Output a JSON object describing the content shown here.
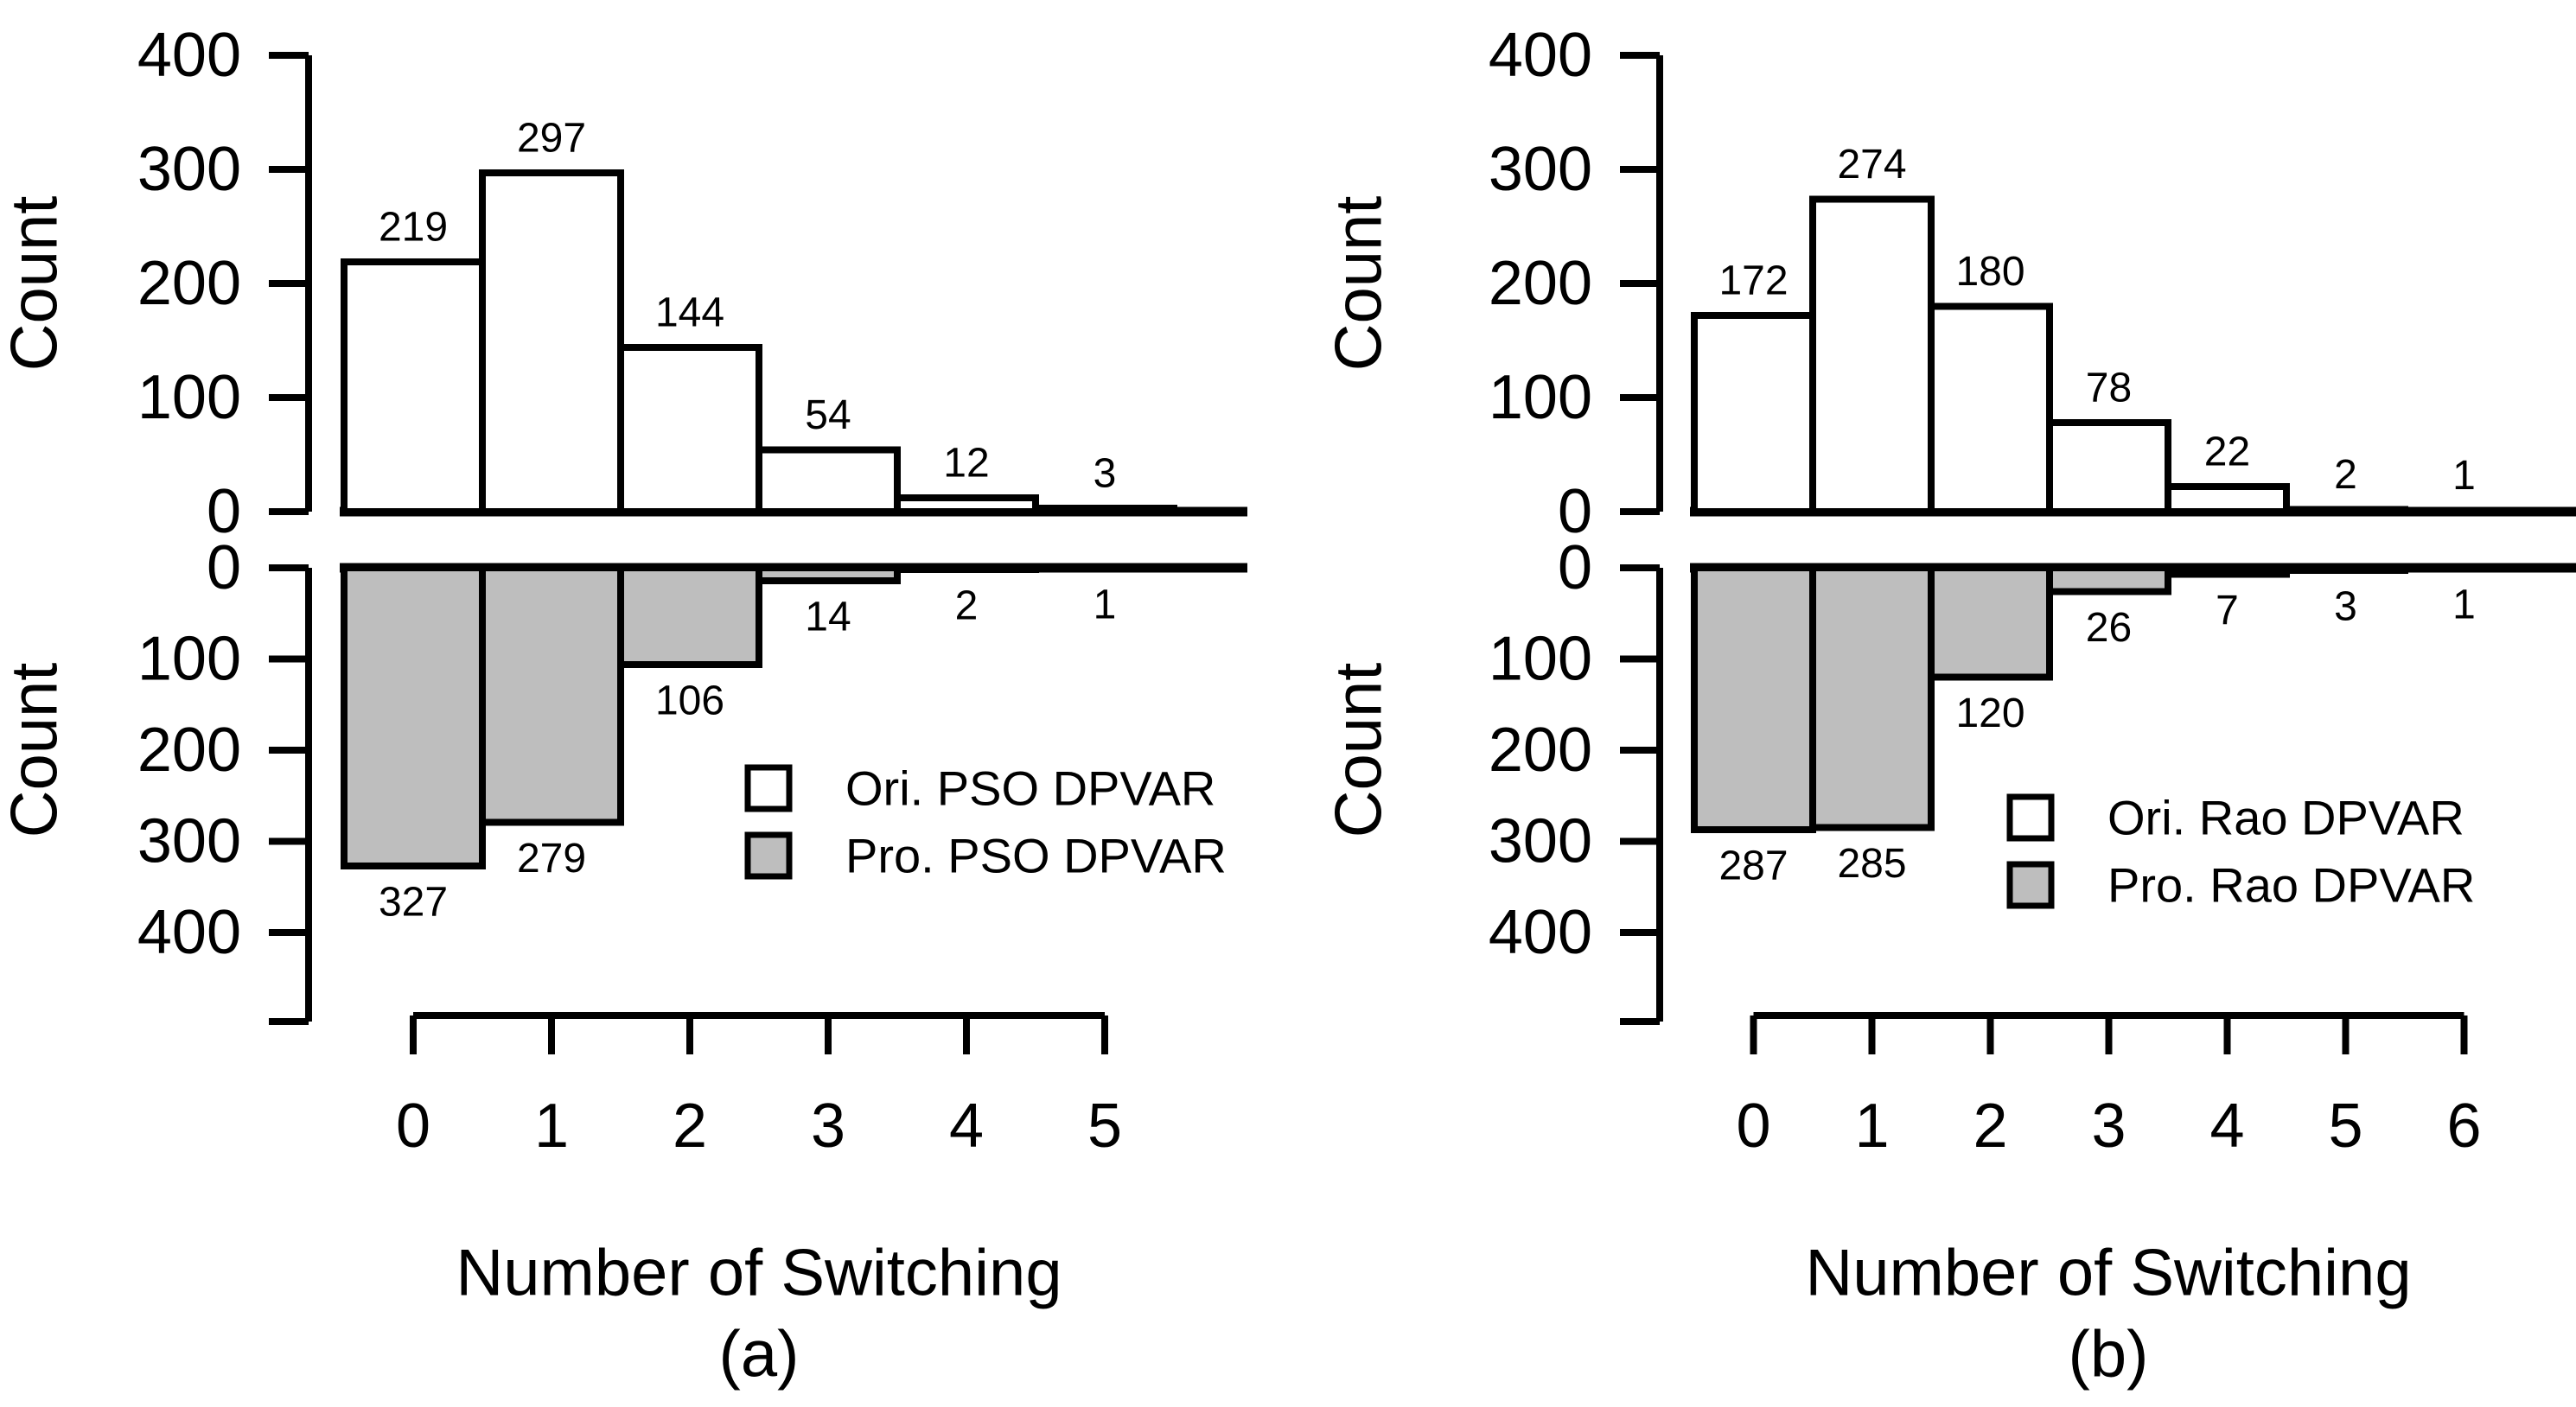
{
  "figure": {
    "background": "#ffffff",
    "ink_color": "#000000",
    "bar_fill_white": "#ffffff",
    "bar_fill_gray": "#bebebe"
  },
  "chart_data": [
    {
      "type": "bar",
      "variant": "back-to-back-vertical-histogram",
      "caption": "(a)",
      "xlabel": "Number of Switching",
      "ylabel_top": "Count",
      "ylabel_bottom": "Count",
      "categories": [
        0,
        1,
        2,
        3,
        4,
        5
      ],
      "yticks": [
        0,
        100,
        200,
        300,
        400
      ],
      "ylim_top": [
        0,
        400
      ],
      "ylim_bottom": [
        0,
        400
      ],
      "grid": false,
      "series": [
        {
          "name": "Ori. PSO DPVAR",
          "direction": "up",
          "fill": "#ffffff",
          "values": [
            219,
            297,
            144,
            54,
            12,
            3
          ]
        },
        {
          "name": "Pro. PSO DPVAR",
          "direction": "down",
          "fill": "#bebebe",
          "values": [
            327,
            279,
            106,
            14,
            2,
            1
          ]
        }
      ],
      "legend": {
        "position": "inside-bottom-right",
        "labels": [
          "Ori. PSO DPVAR",
          "Pro. PSO DPVAR"
        ],
        "fills": [
          "#ffffff",
          "#bebebe"
        ]
      }
    },
    {
      "type": "bar",
      "variant": "back-to-back-vertical-histogram",
      "caption": "(b)",
      "xlabel": "Number of Switching",
      "ylabel_top": "Count",
      "ylabel_bottom": "Count",
      "categories": [
        0,
        1,
        2,
        3,
        4,
        5,
        6
      ],
      "yticks": [
        0,
        100,
        200,
        300,
        400
      ],
      "ylim_top": [
        0,
        400
      ],
      "ylim_bottom": [
        0,
        400
      ],
      "grid": false,
      "series": [
        {
          "name": "Ori. Rao DPVAR",
          "direction": "up",
          "fill": "#ffffff",
          "values": [
            172,
            274,
            180,
            78,
            22,
            2,
            1
          ]
        },
        {
          "name": "Pro. Rao DPVAR",
          "direction": "down",
          "fill": "#bebebe",
          "values": [
            287,
            285,
            120,
            26,
            7,
            3,
            1
          ]
        }
      ],
      "legend": {
        "position": "inside-bottom-right",
        "labels": [
          "Ori. Rao DPVAR",
          "Pro. Rao DPVAR"
        ],
        "fills": [
          "#ffffff",
          "#bebebe"
        ]
      }
    }
  ]
}
